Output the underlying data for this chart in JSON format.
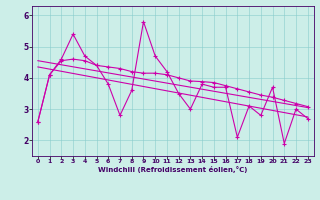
{
  "xlabel": "Windchill (Refroidissement éolien,°C)",
  "background_color": "#cceee8",
  "line_color": "#cc00aa",
  "xlim": [
    -0.5,
    23.5
  ],
  "ylim": [
    1.5,
    6.3
  ],
  "yticks": [
    2,
    3,
    4,
    5,
    6
  ],
  "xticks": [
    0,
    1,
    2,
    3,
    4,
    5,
    6,
    7,
    8,
    9,
    10,
    11,
    12,
    13,
    14,
    15,
    16,
    17,
    18,
    19,
    20,
    21,
    22,
    23
  ],
  "series1_x": [
    0,
    1,
    2,
    3,
    4,
    5,
    6,
    7,
    8,
    9,
    10,
    11,
    12,
    13,
    14,
    15,
    16,
    17,
    18,
    19,
    20,
    21,
    22,
    23
  ],
  "series1_y": [
    2.6,
    4.1,
    4.6,
    5.4,
    4.7,
    4.4,
    3.8,
    2.8,
    3.6,
    5.8,
    4.7,
    4.2,
    3.5,
    3.0,
    3.8,
    3.7,
    3.7,
    2.1,
    3.1,
    2.8,
    3.7,
    1.9,
    3.0,
    2.7
  ],
  "series2_x": [
    0,
    1,
    2,
    3,
    4,
    5,
    6,
    7,
    8,
    9,
    10,
    11,
    12,
    13,
    14,
    15,
    16,
    17,
    18,
    19,
    20,
    21,
    22,
    23
  ],
  "series2_y": [
    2.6,
    4.1,
    4.55,
    4.6,
    4.55,
    4.4,
    4.35,
    4.3,
    4.2,
    4.15,
    4.15,
    4.1,
    4.0,
    3.9,
    3.88,
    3.85,
    3.75,
    3.65,
    3.55,
    3.45,
    3.38,
    3.28,
    3.18,
    3.08
  ],
  "trend1_x": [
    0,
    23
  ],
  "trend1_y": [
    4.55,
    3.05
  ],
  "trend2_x": [
    0,
    23
  ],
  "trend2_y": [
    4.35,
    2.75
  ]
}
